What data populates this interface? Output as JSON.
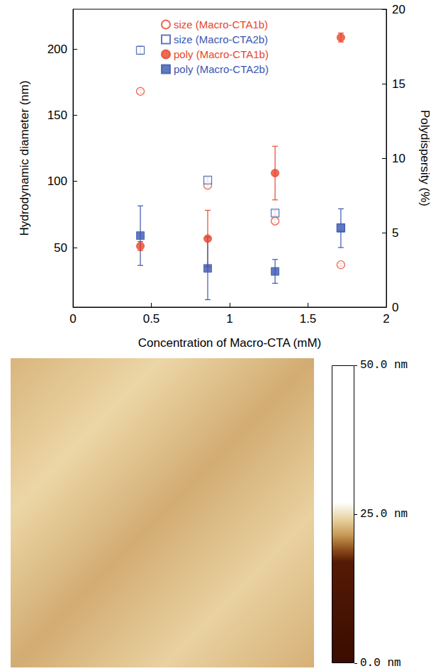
{
  "chart_data": [
    {
      "type": "scatter",
      "x": [
        0.43,
        0.86,
        1.29,
        1.71
      ],
      "xlabel": "Concentration of Macro-CTA (mM)",
      "ylabel": "Hydrodynamic diameter (nm)",
      "y2label": "Polydispersity (%)",
      "xlim": [
        0,
        2
      ],
      "xticks": [
        0,
        0.5,
        1,
        1.5,
        2
      ],
      "ylim": [
        5,
        230
      ],
      "yticks": [
        50,
        100,
        150,
        200
      ],
      "y2lim": [
        0,
        20
      ],
      "y2ticks": [
        0,
        5,
        10,
        15,
        20
      ],
      "legend": "upper center",
      "grid": false,
      "series": [
        {
          "name": "size (Macro-CTA1b)",
          "color": "#e8462c",
          "marker": "open circle",
          "values": [
            168,
            97,
            70,
            37
          ],
          "errors": [
            1.5,
            2,
            1.5,
            1
          ]
        },
        {
          "name": "size (Macro-CTA2b)",
          "color": "#3a57b0",
          "marker": "open square",
          "values": [
            199,
            101,
            76,
            65
          ],
          "errors": [
            3,
            2,
            2,
            2
          ]
        },
        {
          "name": "poly (Macro-CTA1b)",
          "color": "#e8462c",
          "marker": "circle",
          "axis": "y2",
          "values": [
            4.1,
            4.6,
            9.0,
            18.1
          ],
          "errors": [
            0.3,
            1.9,
            1.8,
            0.3
          ]
        },
        {
          "name": "poly (Macro-CTA2b)",
          "color": "#3a57b0",
          "marker": "square",
          "axis": "y2",
          "values": [
            4.8,
            2.6,
            2.4,
            5.3
          ],
          "errors": [
            2.0,
            2.1,
            0.8,
            1.3
          ]
        }
      ]
    },
    {
      "type": "image",
      "colorbar_range": [
        0,
        50
      ],
      "colorbar_ticks": [
        {
          "value": 0,
          "label": "0.0 nm"
        },
        {
          "value": 25,
          "label": "25.0 nm"
        },
        {
          "value": 50,
          "label": "50.0 nm"
        }
      ]
    }
  ]
}
